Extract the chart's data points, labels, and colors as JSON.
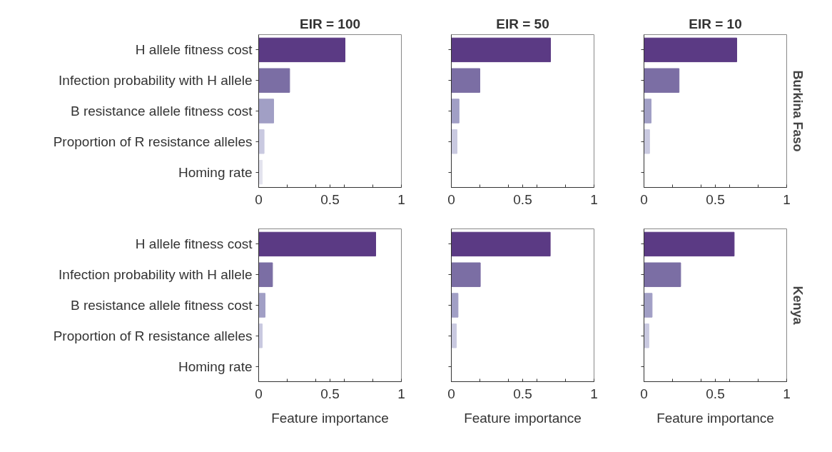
{
  "chart_data": [
    {
      "type": "bar",
      "orientation": "horizontal",
      "title": "EIR = 100",
      "categories": [
        "H allele fitness cost",
        "Infection probability with H allele",
        "B resistance allele fitness cost",
        "Proportion of R resistance alleles",
        "Homing rate"
      ],
      "values": [
        0.605,
        0.217,
        0.105,
        0.038,
        0.025
      ],
      "colors": [
        "#5b3a84",
        "#7b6ea4",
        "#a19fc5",
        "#c9c9e0",
        "#e3e3ee"
      ],
      "xlim": [
        0,
        1
      ],
      "xticks": [
        0,
        {
          "value": 0.2,
          "label": null
        },
        {
          "value": 0.4,
          "label": null
        },
        0.5,
        {
          "value": 0.6,
          "label": null
        },
        {
          "value": 0.8,
          "label": null
        },
        1
      ],
      "grid": false
    },
    {
      "type": "bar",
      "orientation": "horizontal",
      "title": "EIR = 50",
      "categories": [
        null,
        null,
        null,
        null,
        null
      ],
      "values": [
        0.695,
        0.2,
        0.054,
        0.04,
        0
      ],
      "colors": [
        "#5b3a84",
        "#7b6ea4",
        "#a19fc5",
        "#c9c9e0",
        "#e3e3ee"
      ],
      "xlim": [
        0,
        1
      ],
      "xticks": [
        0,
        {
          "value": 0.2,
          "label": null
        },
        {
          "value": 0.4,
          "label": null
        },
        0.5,
        {
          "value": 0.6,
          "label": null
        },
        {
          "value": 0.8,
          "label": null
        },
        1
      ],
      "grid": false,
      "tick_labels": "x"
    },
    {
      "type": "bar",
      "orientation": "horizontal",
      "title": "EIR = 10",
      "categories": [
        null,
        null,
        null,
        null,
        null
      ],
      "values": [
        0.65,
        0.246,
        0.05,
        0.039,
        0
      ],
      "colors": [
        "#5b3a84",
        "#7b6ea4",
        "#a19fc5",
        "#c9c9e0",
        "#e3e3ee"
      ],
      "xlim": [
        0,
        1
      ],
      "xticks": [
        0,
        {
          "value": 0.2,
          "label": null
        },
        {
          "value": 0.4,
          "label": null
        },
        0.5,
        {
          "value": 0.6,
          "label": null
        },
        {
          "value": 0.8,
          "label": null
        },
        1
      ],
      "grid": false,
      "tick_labels": "x",
      "annotations": [
        "Burkina Faso"
      ]
    },
    {
      "type": "bar",
      "orientation": "horizontal",
      "xlabel": "Feature importance",
      "categories": [
        "H allele fitness cost",
        "Infection probability with H allele",
        "B resistance allele fitness cost",
        "Proportion of R resistance alleles",
        "Homing rate"
      ],
      "values": [
        0.82,
        0.097,
        0.045,
        0.025,
        0
      ],
      "colors": [
        "#5b3a84",
        "#7b6ea4",
        "#a19fc5",
        "#c9c9e0",
        "#e3e3ee"
      ],
      "xlim": [
        0,
        1
      ],
      "xticks": [
        0,
        {
          "value": 0.2,
          "label": null
        },
        {
          "value": 0.4,
          "label": null
        },
        0.5,
        {
          "value": 0.6,
          "label": null
        },
        {
          "value": 0.8,
          "label": null
        },
        1
      ],
      "grid": false
    },
    {
      "type": "bar",
      "orientation": "horizontal",
      "xlabel": "Feature importance",
      "categories": [
        null,
        null,
        null,
        null,
        null
      ],
      "values": [
        0.693,
        0.203,
        0.047,
        0.035,
        0
      ],
      "colors": [
        "#5b3a84",
        "#7b6ea4",
        "#a19fc5",
        "#c9c9e0",
        "#e3e3ee"
      ],
      "xlim": [
        0,
        1
      ],
      "xticks": [
        0,
        {
          "value": 0.2,
          "label": null
        },
        {
          "value": 0.4,
          "label": null
        },
        0.5,
        {
          "value": 0.6,
          "label": null
        },
        {
          "value": 0.8,
          "label": null
        },
        1
      ],
      "grid": false,
      "tick_labels": "x"
    },
    {
      "type": "bar",
      "orientation": "horizontal",
      "xlabel": "Feature importance",
      "categories": [
        null,
        null,
        null,
        null,
        null
      ],
      "values": [
        0.632,
        0.257,
        0.057,
        0.034,
        0
      ],
      "colors": [
        "#5b3a84",
        "#7b6ea4",
        "#a19fc5",
        "#c9c9e0",
        "#e3e3ee"
      ],
      "xlim": [
        0,
        1
      ],
      "xticks": [
        0,
        {
          "value": 0.2,
          "label": null
        },
        {
          "value": 0.4,
          "label": null
        },
        0.5,
        {
          "value": 0.6,
          "label": null
        },
        {
          "value": 0.8,
          "label": null
        },
        1
      ],
      "grid": false,
      "tick_labels": "x",
      "annotations": [
        "Kenya"
      ]
    }
  ]
}
